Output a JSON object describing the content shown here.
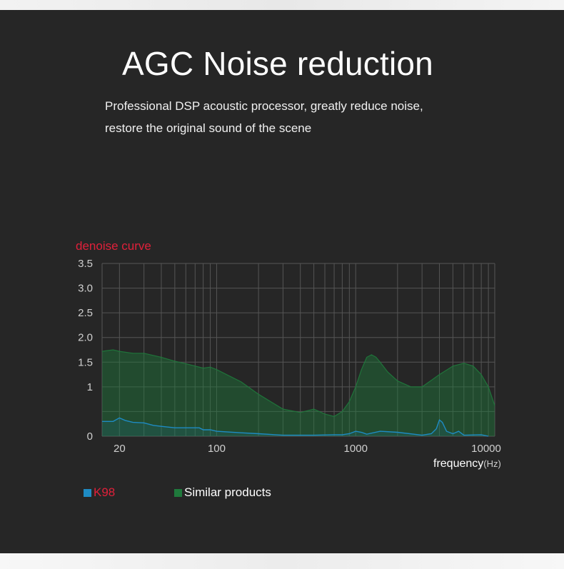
{
  "page": {
    "title": "AGC Noise reduction",
    "subtitle_lines": [
      "Professional DSP acoustic processor, greatly reduce noise,",
      "restore the original sound of the scene"
    ]
  },
  "colors": {
    "background": "#262626",
    "title_text": "#ffffff",
    "chart_title": "#e0203a",
    "k98_series": "#1e8bc3",
    "k98_label": "#e0203a",
    "similar_series": "#1f7a3c",
    "similar_label": "#ffffff",
    "grid": "#555555"
  },
  "chart_data": {
    "type": "area",
    "title": "denoise  curve",
    "xlabel": "frequency",
    "xlabel_unit": "(Hz)",
    "xscale": "log",
    "xlim": [
      15,
      10000
    ],
    "ylim": [
      0,
      3.5
    ],
    "yticks": [
      0,
      0.5,
      1,
      1.5,
      2.0,
      2.5,
      3.0,
      3.5
    ],
    "ytick_labels": [
      "0",
      "",
      "1",
      "1.5",
      "2.0",
      "2.5",
      "3.0",
      "3.5"
    ],
    "xticks": [
      20,
      100,
      1000,
      10000
    ],
    "xtick_labels": [
      "20",
      "100",
      "1000",
      "10000"
    ],
    "grid": true,
    "legend_position": "bottom-left",
    "series": [
      {
        "name": "K98",
        "x": [
          15,
          18,
          20,
          22,
          25,
          30,
          35,
          40,
          50,
          60,
          70,
          75,
          80,
          90,
          100,
          150,
          200,
          300,
          400,
          500,
          700,
          800,
          900,
          1000,
          1100,
          1200,
          1500,
          2000,
          3000,
          3500,
          3800,
          4000,
          4200,
          4500,
          5000,
          5500,
          6000,
          8000,
          9000
        ],
        "y": [
          0.3,
          0.3,
          0.37,
          0.32,
          0.28,
          0.27,
          0.22,
          0.2,
          0.17,
          0.17,
          0.17,
          0.17,
          0.13,
          0.13,
          0.1,
          0.07,
          0.05,
          0.02,
          0.02,
          0.02,
          0.03,
          0.03,
          0.05,
          0.1,
          0.08,
          0.04,
          0.1,
          0.08,
          0.02,
          0.05,
          0.15,
          0.33,
          0.28,
          0.1,
          0.05,
          0.1,
          0.02,
          0.03,
          0.0
        ]
      },
      {
        "name": "Similar products",
        "x": [
          15,
          18,
          20,
          25,
          30,
          40,
          50,
          60,
          80,
          90,
          100,
          150,
          200,
          300,
          400,
          500,
          600,
          700,
          800,
          900,
          1000,
          1100,
          1200,
          1300,
          1400,
          1500,
          1700,
          2000,
          2500,
          3000,
          4000,
          5000,
          6000,
          7000,
          8000,
          9000,
          10000
        ],
        "y": [
          1.72,
          1.75,
          1.72,
          1.68,
          1.68,
          1.6,
          1.52,
          1.47,
          1.38,
          1.4,
          1.35,
          1.1,
          0.85,
          0.55,
          0.48,
          0.55,
          0.45,
          0.4,
          0.5,
          0.7,
          1.0,
          1.35,
          1.6,
          1.65,
          1.6,
          1.5,
          1.3,
          1.12,
          1.0,
          1.0,
          1.25,
          1.42,
          1.48,
          1.42,
          1.25,
          1.0,
          0.62
        ]
      }
    ]
  },
  "legend": {
    "k98_label": "K98",
    "similar_label": "Similar products"
  }
}
